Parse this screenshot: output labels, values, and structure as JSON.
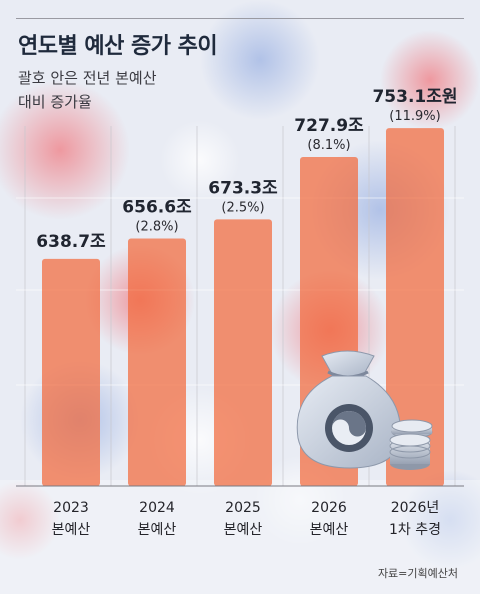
{
  "header": {
    "title": "연도별 예산 증가 추이",
    "subtitle_line1": "괄호 안은 전년 본예산",
    "subtitle_line2": "대비 증가율"
  },
  "footer": {
    "source": "자료=기획예산처"
  },
  "colors": {
    "bar": "#f26a3c",
    "title": "#1f2a3c",
    "grid": "#c8c8ce"
  },
  "chart_data": {
    "type": "bar",
    "categories": [
      [
        "2023",
        "본예산"
      ],
      [
        "2024",
        "본예산"
      ],
      [
        "2025",
        "본예산"
      ],
      [
        "2026",
        "본예산"
      ],
      [
        "2026년",
        "1차 추경"
      ]
    ],
    "values": [
      638.7,
      656.6,
      673.3,
      727.9,
      753.1
    ],
    "value_labels": [
      "638.7조",
      "656.6조",
      "673.3조",
      "727.9조",
      "753.1조원"
    ],
    "growth_labels": [
      "",
      "(2.8%)",
      "(2.5%)",
      "(8.1%)",
      "(11.9%)"
    ],
    "growth_percent": [
      null,
      2.8,
      2.5,
      8.1,
      11.9
    ],
    "unit": "조원",
    "grid": true,
    "legend": "none"
  }
}
